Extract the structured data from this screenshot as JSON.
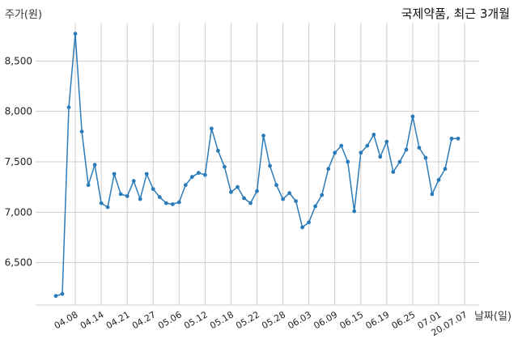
{
  "chart_data": {
    "type": "line",
    "title": "국제약품, 최근 3개월",
    "xlabel": "날짜(일)",
    "ylabel": "주가(원)",
    "ylim": [
      6080,
      8880
    ],
    "yticks": [
      6500,
      7000,
      7500,
      8000,
      8500
    ],
    "yticklabels": [
      "6,500",
      "7,000",
      "7,500",
      "8,000",
      "8,500"
    ],
    "xticklabels": [
      "04.08",
      "04.14",
      "04.21",
      "04.27",
      "05.06",
      "05.12",
      "05.18",
      "05.22",
      "05.28",
      "06.03",
      "06.09",
      "06.15",
      "06.19",
      "06.25",
      "07.01",
      "20.07.07"
    ],
    "xtick_indices": [
      3,
      7,
      11,
      15,
      19,
      23,
      27,
      31,
      35,
      39,
      43,
      47,
      51,
      55,
      59,
      63
    ],
    "grid": true,
    "color": "#2b7bb9",
    "series": [
      {
        "values": [
          6170,
          6190,
          8040,
          8770,
          7800,
          7270,
          7470,
          7090,
          7050,
          7380,
          7180,
          7160,
          7310,
          7130,
          7380,
          7230,
          7150,
          7090,
          7080,
          7100,
          7270,
          7350,
          7390,
          7370,
          7830,
          7610,
          7450,
          7200,
          7250,
          7140,
          7090,
          7210,
          7760,
          7460,
          7270,
          7130,
          7190,
          7110,
          6850,
          6900,
          7060,
          7170,
          7430,
          7590,
          7660,
          7500,
          7010,
          7590,
          7660,
          7770,
          7550,
          7700,
          7400,
          7500,
          7620,
          7950,
          7640,
          7540,
          7180,
          7320,
          7430,
          7730,
          7730
        ]
      }
    ]
  }
}
